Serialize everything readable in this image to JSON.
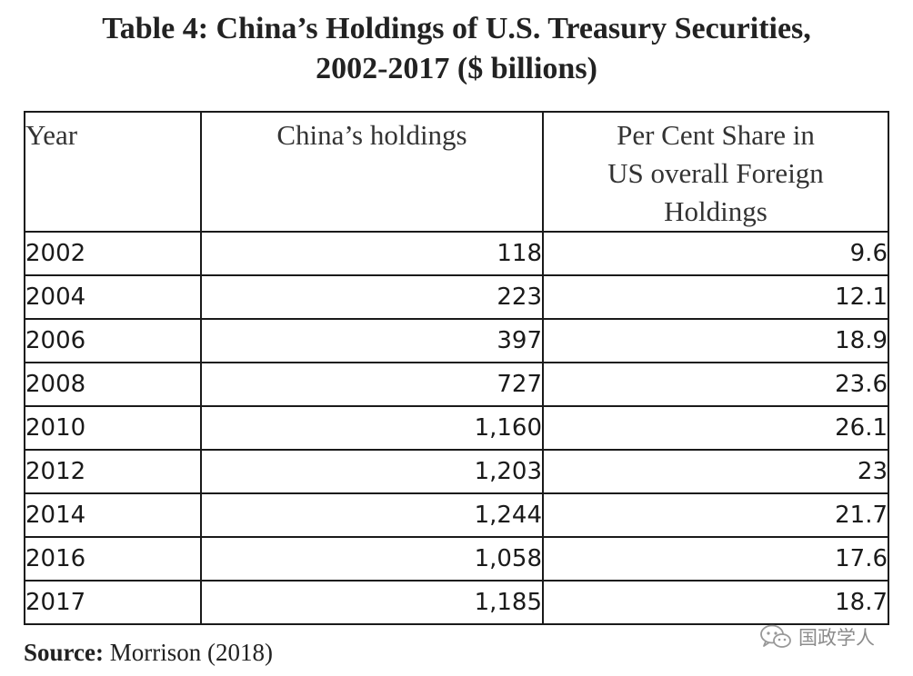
{
  "title": {
    "line1": "Table 4: China’s Holdings of U.S. Treasury Securities,",
    "line2": "2002-2017 ($ billions)"
  },
  "table": {
    "headers": {
      "year": "Year",
      "holdings": "China’s holdings",
      "share_line1": "Per Cent Share in",
      "share_line2": "US overall Foreign",
      "share_line3": "Holdings"
    },
    "rows": [
      {
        "year": "2002",
        "holdings": "118",
        "share": "9.6"
      },
      {
        "year": "2004",
        "holdings": "223",
        "share": "12.1"
      },
      {
        "year": "2006",
        "holdings": "397",
        "share": "18.9"
      },
      {
        "year": "2008",
        "holdings": "727",
        "share": "23.6"
      },
      {
        "year": "2010",
        "holdings": "1,160",
        "share": "26.1"
      },
      {
        "year": "2012",
        "holdings": "1,203",
        "share": "23"
      },
      {
        "year": "2014",
        "holdings": "1,244",
        "share": "21.7"
      },
      {
        "year": "2016",
        "holdings": "1,058",
        "share": "17.6"
      },
      {
        "year": "2017",
        "holdings": "1,185",
        "share": "18.7"
      }
    ]
  },
  "source": {
    "label": "Source:",
    "text": " Morrison (2018)"
  },
  "watermark": {
    "icon": "wechat-icon",
    "text": "国政学人"
  }
}
